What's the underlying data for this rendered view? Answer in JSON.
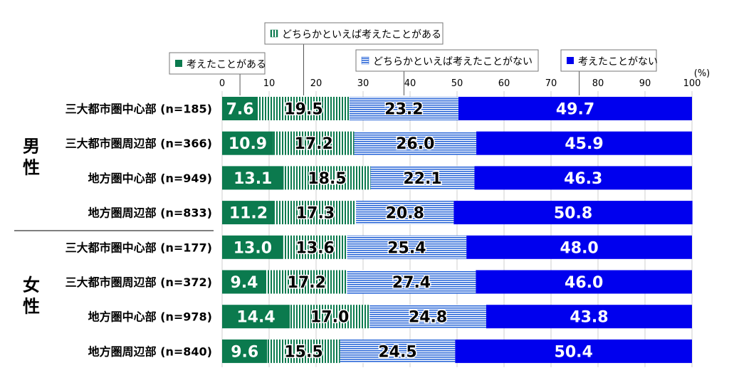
{
  "chart_data": {
    "type": "bar",
    "orientation": "horizontal",
    "stacked": true,
    "percent_unit": "(%)",
    "xlim": [
      0,
      100
    ],
    "xticks": [
      "0",
      "10",
      "20",
      "30",
      "40",
      "50",
      "60",
      "70",
      "80",
      "90",
      "100"
    ],
    "groups": [
      {
        "label": "男性",
        "rows": [
          0,
          1,
          2,
          3
        ]
      },
      {
        "label": "女性",
        "rows": [
          4,
          5,
          6,
          7
        ]
      }
    ],
    "categories": [
      "三大都市圏中心部 (n=185)",
      "三大都市圏周辺部 (n=366)",
      "地方圏中心部 (n=949)",
      "地方圏周辺部 (n=833)",
      "三大都市圏中心部 (n=177)",
      "三大都市圏周辺部 (n=372)",
      "地方圏中心部 (n=978)",
      "地方圏周辺部 (n=840)"
    ],
    "series": [
      {
        "name": "考えたことがある",
        "color": "#0b7a4e",
        "pattern": "solid",
        "values": [
          7.6,
          10.9,
          13.1,
          11.2,
          13.0,
          9.4,
          14.4,
          9.6
        ]
      },
      {
        "name": "どちらかといえば考えたことがある",
        "color": "#0b7a4e",
        "pattern": "vertical-stripes",
        "values": [
          19.5,
          17.2,
          18.5,
          17.3,
          13.6,
          17.2,
          17.0,
          15.5
        ]
      },
      {
        "name": "どちらかといえば考えたことがない",
        "color": "#1f5fd6",
        "pattern": "horizontal-stripes",
        "values": [
          23.2,
          26.0,
          22.1,
          20.8,
          25.4,
          27.4,
          24.8,
          24.5
        ]
      },
      {
        "name": "考えたことがない",
        "color": "#0000ee",
        "pattern": "solid",
        "values": [
          49.7,
          45.9,
          46.3,
          50.8,
          48.0,
          46.0,
          43.8,
          50.4
        ]
      }
    ],
    "value_labels": [
      [
        "7.6",
        "10.9",
        "13.1",
        "11.2",
        "13.0",
        "9.4",
        "14.4",
        "9.6"
      ],
      [
        "19.5",
        "17.2",
        "18.5",
        "17.3",
        "13.6",
        "17.2",
        "17.0",
        "15.5"
      ],
      [
        "23.2",
        "26.0",
        "22.1",
        "20.8",
        "25.4",
        "27.4",
        "24.8",
        "24.5"
      ],
      [
        "49.7",
        "45.9",
        "46.3",
        "50.8",
        "48.0",
        "46.0",
        "43.8",
        "50.4"
      ]
    ],
    "legend_placement": "top, callout boxes above bars"
  }
}
